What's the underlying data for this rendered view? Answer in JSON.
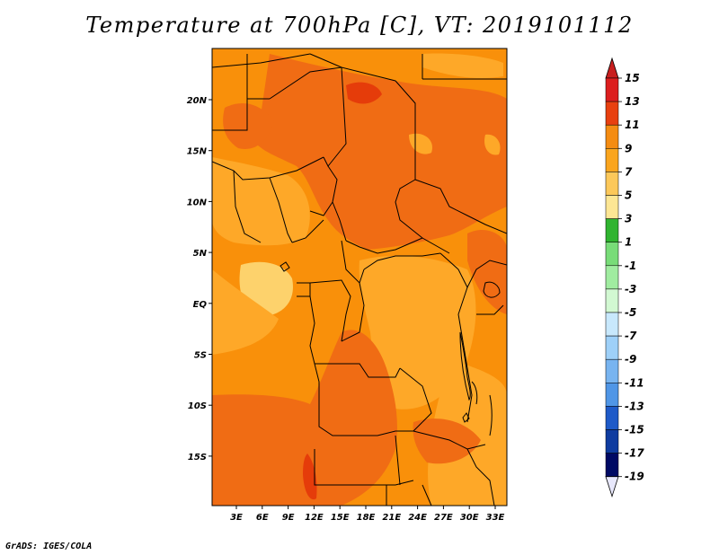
{
  "title": "Temperature at 700hPa [C], VT: 2019101112",
  "credit": "GrADS: IGES/COLA",
  "map": {
    "lon_labels": [
      "3E",
      "6E",
      "9E",
      "12E",
      "15E",
      "18E",
      "21E",
      "24E",
      "27E",
      "30E",
      "33E"
    ],
    "lat_labels": [
      "20N",
      "15N",
      "10N",
      "5N",
      "EQ",
      "5S",
      "10S",
      "15S"
    ],
    "fill_colors": {
      "c7_9": "#fea828",
      "c9_11": "#f9900a",
      "c11_13": "#f06c14",
      "c13_15": "#e53c0a",
      "c5_7": "#fdd26c"
    }
  },
  "colorbar": {
    "labels": [
      "15",
      "13",
      "11",
      "9",
      "7",
      "5",
      "3",
      "1",
      "-1",
      "-3",
      "-5",
      "-7",
      "-9",
      "-11",
      "-13",
      "-15",
      "-17",
      "-19"
    ],
    "colors": [
      "#dc1e1e",
      "#e8400f",
      "#f06414",
      "#f48c12",
      "#faa51e",
      "#fcc85a",
      "#fde694",
      "#fefec0",
      "#30b430",
      "#78dc78",
      "#a0eca0",
      "#d2f8d2",
      "#e6f4fc",
      "#c8e8fc",
      "#9ed0f8",
      "#78b4f0",
      "#5096e6",
      "#2d78dc",
      "#1e5ac8",
      "#0f3ca0",
      "#000a64"
    ],
    "top_arrow_color": "#c81e1e",
    "bottom_arrow_color": "#e8e8fc"
  }
}
